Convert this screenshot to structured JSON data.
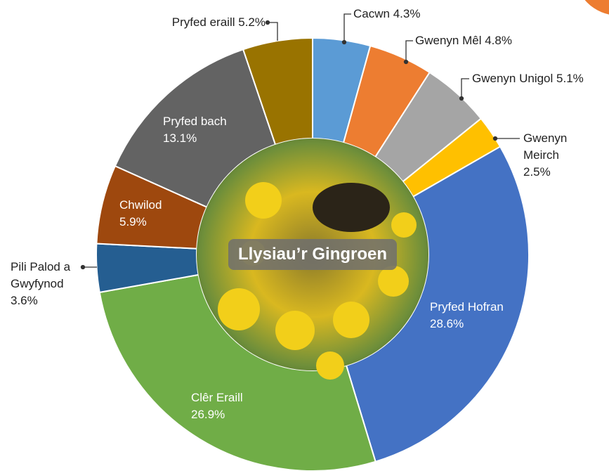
{
  "chart_data": {
    "type": "donut",
    "title": "Llysiau’r Gingroen",
    "categories": [
      "Cacwn",
      "Gwenyn Mêl",
      "Gwenyn Unigol",
      "Gwenyn Meirch",
      "Pryfed Hofran",
      "Clêr Eraill",
      "Pili Palod a Gwyfynod",
      "Chwilod",
      "Pryfed bach",
      "Pryfed eraill"
    ],
    "values": [
      4.3,
      4.8,
      5.1,
      2.5,
      28.6,
      26.9,
      3.6,
      5.9,
      13.1,
      5.2
    ],
    "value_labels": [
      "4.3%",
      "4.8%",
      "5.1%",
      "2.5%",
      "28.6%",
      "26.9%",
      "3.6%",
      "5.9%",
      "13.1%",
      "5.2%"
    ],
    "colors": [
      "#5b9bd5",
      "#ed7d31",
      "#a5a5a5",
      "#ffc000",
      "#4472c4",
      "#70ad47",
      "#255e91",
      "#9e480e",
      "#636363",
      "#997300"
    ]
  }
}
